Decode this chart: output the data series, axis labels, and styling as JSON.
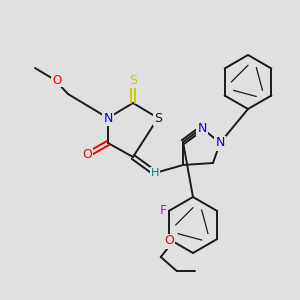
{
  "background_color": "#e0e0e0",
  "bond_color": "#1a1a1a",
  "atom_colors": {
    "N": "#0000ee",
    "O": "#ee0000",
    "S_yellow": "#cccc00",
    "S_dark": "#1a1a1a",
    "F": "#dd00dd",
    "H": "#007777",
    "C": "#1a1a1a"
  },
  "figsize": [
    3.0,
    3.0
  ],
  "dpi": 100
}
